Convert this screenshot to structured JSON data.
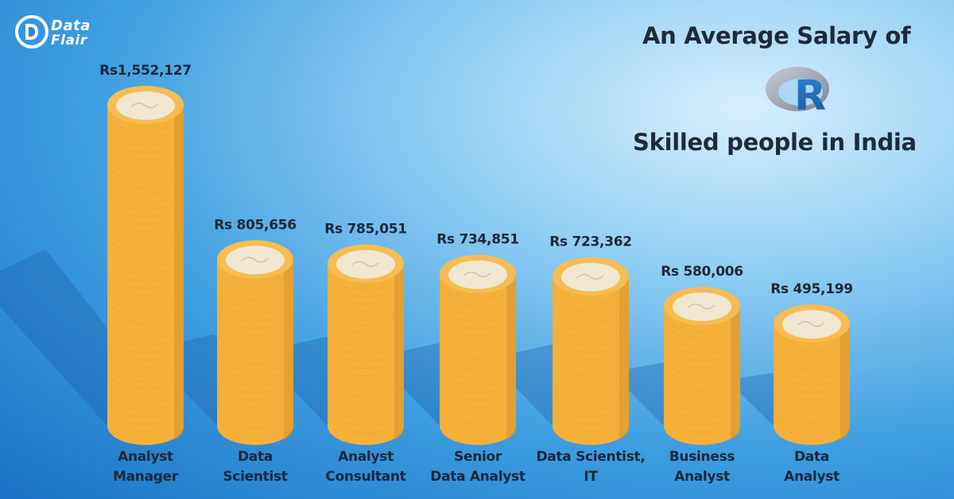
{
  "brand": {
    "logo_line1": "Data",
    "logo_line2": "Flair"
  },
  "heading": {
    "line1": "An Average Salary of",
    "r_logo_letter": "R",
    "line2": "Skilled people in India"
  },
  "colors": {
    "coin_body": "#f5b03a",
    "coin_shade": "#d9922a",
    "coin_top": "#efe7cf",
    "text": "#1d2738"
  },
  "chart_data": {
    "type": "bar",
    "title": "An Average Salary of R Skilled people in India",
    "categories": [
      "Analyst Manager",
      "Data Scientist",
      "Analyst Consultant",
      "Senior Data Analyst",
      "Data Scientist, IT",
      "Business Analyst",
      "Data Analyst"
    ],
    "category_lines": [
      [
        "Analyst",
        "Manager"
      ],
      [
        "Data",
        "Scientist"
      ],
      [
        "Analyst",
        "Consultant"
      ],
      [
        "Senior",
        "Data Analyst"
      ],
      [
        "Data Scientist,",
        "IT"
      ],
      [
        "Business",
        "Analyst"
      ],
      [
        "Data",
        "Analyst"
      ]
    ],
    "values": [
      1552127,
      805656,
      785051,
      734851,
      723362,
      580006,
      495199
    ],
    "value_labels": [
      "Rs1,552,127",
      "Rs 805,656",
      "Rs 785,051",
      "Rs 734,851",
      "Rs 723,362",
      "Rs 580,006",
      "Rs 495,199"
    ],
    "xlabel": "",
    "ylabel": ""
  }
}
